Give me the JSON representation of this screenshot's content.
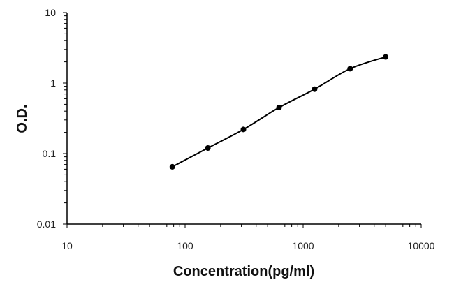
{
  "chart_data": {
    "type": "line",
    "xlabel": "Concentration(pg/ml)",
    "ylabel": "O.D.",
    "x_scale": "log",
    "y_scale": "log",
    "xlim": [
      10,
      10000
    ],
    "ylim": [
      0.01,
      10
    ],
    "x_ticks": [
      "10",
      "100",
      "1000",
      "10000"
    ],
    "y_ticks": [
      "10",
      "1",
      "0.1",
      "0.01"
    ],
    "grid": false,
    "series": [
      {
        "x": [
          78,
          156,
          312,
          625,
          1250,
          2500,
          5000
        ],
        "y": [
          0.065,
          0.12,
          0.22,
          0.45,
          0.82,
          1.6,
          2.35
        ],
        "marker": "circle",
        "color": "#000000"
      }
    ]
  }
}
